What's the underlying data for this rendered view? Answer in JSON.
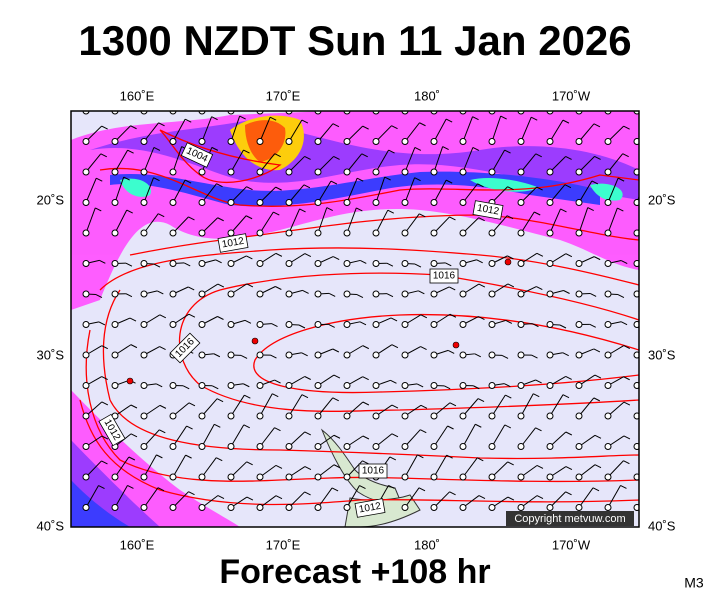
{
  "title": "1300 NZDT Sun 11 Jan 2026",
  "footer": "Forecast +108 hr",
  "model_label": "M3",
  "map": {
    "top_labels": [
      "160˚E",
      "170˚E",
      "180˚",
      "170˚W"
    ],
    "bottom_labels": [
      "160˚E",
      "170˚E",
      "180˚",
      "170˚W"
    ],
    "left_labels": [
      "20˚S",
      "30˚S",
      "40˚S"
    ],
    "right_labels": [
      "20˚S",
      "30˚S",
      "40˚S"
    ],
    "isobar_labels": [
      "1004",
      "1012",
      "1012",
      "1016",
      "1016",
      "1012",
      "1016",
      "1012"
    ],
    "copyright": "Copyright metvuw.com"
  }
}
